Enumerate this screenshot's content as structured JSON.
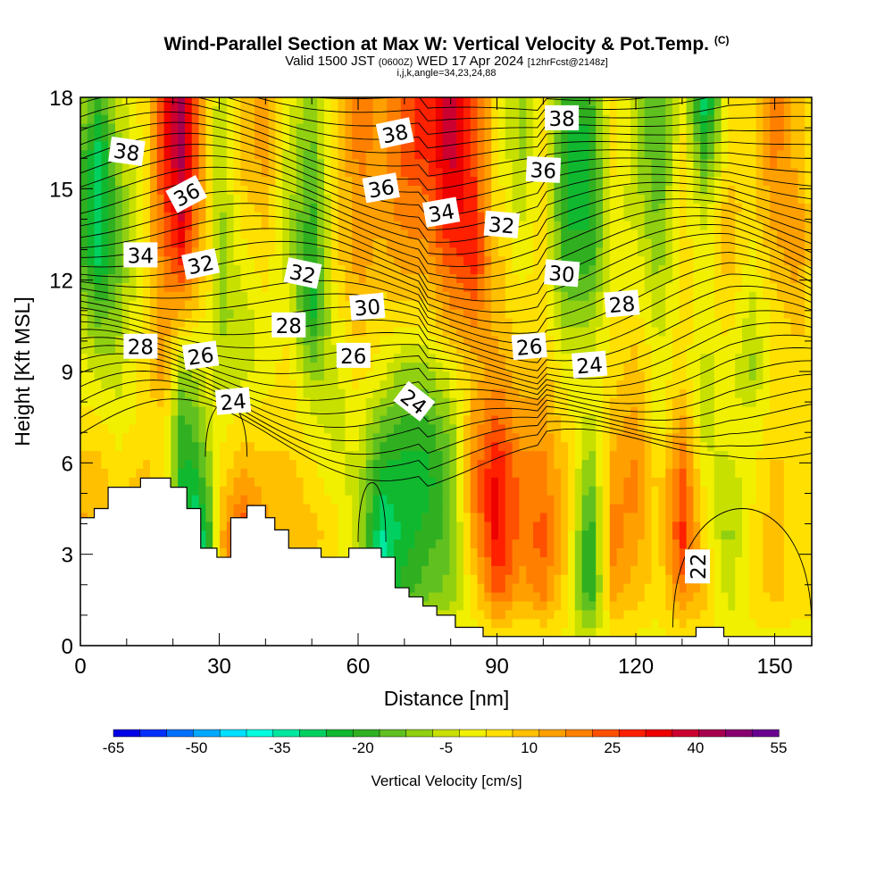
{
  "header": {
    "title": "Wind-Parallel Section at Max W: Vertical Velocity & Pot.Temp.",
    "title_tag": "(C)",
    "valid_prefix": "Valid 1500 JST",
    "valid_utc": "(0600Z)",
    "valid_date": "WED 17 Apr 2024",
    "forecast": "[12hrFcst@2148z]",
    "grid_info": "i,j,k,angle=34,23,24,88"
  },
  "chart_data": {
    "type": "heatmap",
    "xlabel": "Distance [nm]",
    "ylabel": "Height [Kft MSL]",
    "xlim": [
      0,
      158
    ],
    "ylim": [
      0,
      18
    ],
    "x_ticks": [
      0,
      30,
      60,
      90,
      120,
      150
    ],
    "y_ticks": [
      0,
      3,
      6,
      9,
      12,
      15,
      18
    ],
    "grid": false,
    "colorbar": {
      "title": "Vertical Velocity [cm/s]",
      "tick_labels": [
        "-65",
        "-50",
        "-35",
        "-20",
        "-5",
        "10",
        "25",
        "40",
        "55"
      ],
      "levels": [
        -65,
        -60,
        -55,
        -50,
        -45,
        -40,
        -35,
        -30,
        -25,
        -20,
        -15,
        -10,
        -5,
        0,
        5,
        10,
        15,
        20,
        25,
        30,
        35,
        40,
        45,
        50,
        55
      ],
      "colors": [
        "#0000e6",
        "#0030ff",
        "#0070ff",
        "#00a8ff",
        "#00e0ff",
        "#00ffe0",
        "#00e8a0",
        "#00d060",
        "#10b830",
        "#30b020",
        "#60c020",
        "#90d010",
        "#c8e000",
        "#f0f000",
        "#ffe000",
        "#ffc000",
        "#ffa000",
        "#ff8000",
        "#ff5000",
        "#ff2000",
        "#ee0000",
        "#cc0030",
        "#a80050",
        "#880070",
        "#6a0090"
      ]
    },
    "vertical_velocity_columns": [
      {
        "x": 0,
        "w": [
          0,
          5,
          15,
          10,
          5,
          0,
          -5,
          -15,
          -20,
          -15,
          -5
        ]
      },
      {
        "x": 4,
        "w": [
          0,
          5,
          10,
          10,
          5,
          -5,
          -15,
          -30,
          -30,
          -30,
          -20
        ]
      },
      {
        "x": 8,
        "w": [
          0,
          5,
          10,
          5,
          0,
          -5,
          -10,
          -15,
          -15,
          -10,
          -5
        ]
      },
      {
        "x": 14,
        "w": [
          0,
          5,
          10,
          10,
          5,
          5,
          5,
          5,
          5,
          5,
          5
        ]
      },
      {
        "x": 18,
        "w": [
          0,
          0,
          0,
          5,
          5,
          15,
          15,
          20,
          25,
          30,
          30
        ]
      },
      {
        "x": 22,
        "w": [
          0,
          0,
          -20,
          -25,
          -20,
          -10,
          10,
          30,
          40,
          45,
          45
        ]
      },
      {
        "x": 25,
        "w": [
          0,
          -30,
          -35,
          -25,
          -15,
          -5,
          5,
          15,
          20,
          25,
          25
        ]
      },
      {
        "x": 28,
        "w": [
          0,
          -15,
          -20,
          -10,
          -5,
          0,
          0,
          5,
          5,
          5,
          5
        ]
      },
      {
        "x": 30,
        "w": [
          0,
          5,
          10,
          5,
          0,
          -5,
          -10,
          -10,
          -10,
          -10,
          -5
        ]
      },
      {
        "x": 35,
        "w": [
          0,
          35,
          30,
          15,
          5,
          -5,
          -5,
          0,
          5,
          10,
          10
        ]
      },
      {
        "x": 40,
        "w": [
          0,
          10,
          15,
          10,
          5,
          0,
          0,
          5,
          10,
          15,
          15
        ]
      },
      {
        "x": 45,
        "w": [
          0,
          5,
          10,
          10,
          5,
          5,
          0,
          -5,
          -5,
          -5,
          0
        ]
      },
      {
        "x": 50,
        "w": [
          0,
          5,
          10,
          5,
          0,
          -10,
          -25,
          -25,
          -20,
          -15,
          -10
        ]
      },
      {
        "x": 55,
        "w": [
          0,
          0,
          5,
          0,
          -5,
          -5,
          0,
          5,
          5,
          5,
          5
        ]
      },
      {
        "x": 60,
        "w": [
          0,
          -5,
          -5,
          -5,
          0,
          5,
          10,
          15,
          15,
          20,
          20
        ]
      },
      {
        "x": 65,
        "w": [
          0,
          -30,
          -35,
          -25,
          -15,
          0,
          5,
          10,
          15,
          15,
          15
        ]
      },
      {
        "x": 70,
        "w": [
          0,
          -20,
          -25,
          -25,
          -20,
          -10,
          5,
          15,
          20,
          25,
          25
        ]
      },
      {
        "x": 75,
        "w": [
          0,
          -15,
          -20,
          -25,
          -20,
          -10,
          5,
          15,
          20,
          30,
          30
        ]
      },
      {
        "x": 80,
        "w": [
          0,
          -10,
          -15,
          -15,
          -10,
          0,
          15,
          25,
          35,
          40,
          40
        ]
      },
      {
        "x": 85,
        "w": [
          0,
          5,
          15,
          20,
          15,
          10,
          20,
          30,
          30,
          25,
          25
        ]
      },
      {
        "x": 90,
        "w": [
          0,
          25,
          35,
          35,
          25,
          15,
          10,
          10,
          5,
          5,
          5
        ]
      },
      {
        "x": 95,
        "w": [
          0,
          15,
          20,
          20,
          15,
          10,
          5,
          0,
          -5,
          -10,
          -10
        ]
      },
      {
        "x": 100,
        "w": [
          0,
          20,
          25,
          20,
          15,
          10,
          5,
          5,
          5,
          5,
          5
        ]
      },
      {
        "x": 105,
        "w": [
          0,
          5,
          10,
          10,
          5,
          0,
          -10,
          -20,
          -25,
          -25,
          -20
        ]
      },
      {
        "x": 110,
        "w": [
          0,
          -25,
          -25,
          -15,
          -5,
          0,
          -10,
          -20,
          -25,
          -25,
          -20
        ]
      },
      {
        "x": 115,
        "w": [
          0,
          15,
          20,
          15,
          10,
          5,
          5,
          0,
          0,
          5,
          5
        ]
      },
      {
        "x": 120,
        "w": [
          0,
          10,
          15,
          20,
          15,
          10,
          5,
          0,
          -5,
          -5,
          -5
        ]
      },
      {
        "x": 125,
        "w": [
          0,
          5,
          5,
          5,
          0,
          0,
          -5,
          -10,
          -15,
          -20,
          -20
        ]
      },
      {
        "x": 130,
        "w": [
          0,
          20,
          30,
          25,
          15,
          5,
          5,
          5,
          5,
          5,
          0
        ]
      },
      {
        "x": 135,
        "w": [
          0,
          10,
          5,
          0,
          -5,
          -5,
          0,
          0,
          -5,
          -20,
          -35
        ]
      },
      {
        "x": 140,
        "w": [
          0,
          -5,
          -10,
          -5,
          0,
          0,
          5,
          10,
          10,
          5,
          5
        ]
      },
      {
        "x": 145,
        "w": [
          0,
          5,
          5,
          0,
          0,
          -10,
          -5,
          0,
          5,
          5,
          5
        ]
      },
      {
        "x": 150,
        "w": [
          0,
          10,
          10,
          10,
          5,
          5,
          5,
          10,
          15,
          20,
          20
        ]
      },
      {
        "x": 155,
        "w": [
          0,
          5,
          5,
          5,
          5,
          5,
          10,
          15,
          15,
          10,
          10
        ]
      },
      {
        "x": 158,
        "w": [
          0,
          5,
          5,
          5,
          5,
          5,
          5,
          5,
          5,
          5,
          5
        ]
      }
    ],
    "terrain": [
      {
        "x": 0,
        "h": 4.2
      },
      {
        "x": 3,
        "h": 4.5
      },
      {
        "x": 6,
        "h": 5.2
      },
      {
        "x": 13,
        "h": 5.5
      },
      {
        "x": 19.5,
        "h": 5.2
      },
      {
        "x": 23,
        "h": 4.5
      },
      {
        "x": 26,
        "h": 3.2
      },
      {
        "x": 29.5,
        "h": 2.9
      },
      {
        "x": 32.5,
        "h": 4.2
      },
      {
        "x": 36,
        "h": 4.6
      },
      {
        "x": 40,
        "h": 4.2
      },
      {
        "x": 42,
        "h": 3.8
      },
      {
        "x": 45,
        "h": 3.2
      },
      {
        "x": 52,
        "h": 2.9
      },
      {
        "x": 58,
        "h": 3.2
      },
      {
        "x": 65,
        "h": 2.9
      },
      {
        "x": 68,
        "h": 1.9
      },
      {
        "x": 71,
        "h": 1.6
      },
      {
        "x": 74,
        "h": 1.3
      },
      {
        "x": 77,
        "h": 1
      },
      {
        "x": 81,
        "h": 0.6
      },
      {
        "x": 87,
        "h": 0.3
      },
      {
        "x": 133,
        "h": 0.6
      },
      {
        "x": 139,
        "h": 0.3
      },
      {
        "x": 158,
        "h": 0.3
      }
    ],
    "contour_labels": [
      {
        "text": "38",
        "x": 10,
        "y": 16.2,
        "angle": 8
      },
      {
        "text": "38",
        "x": 68,
        "y": 16.8,
        "angle": -12
      },
      {
        "text": "38",
        "x": 104,
        "y": 17.3,
        "angle": 0
      },
      {
        "text": "36",
        "x": 23,
        "y": 14.8,
        "angle": -28
      },
      {
        "text": "36",
        "x": 65,
        "y": 15.0,
        "angle": -10
      },
      {
        "text": "36",
        "x": 100,
        "y": 15.6,
        "angle": 3
      },
      {
        "text": "34",
        "x": 13,
        "y": 12.8,
        "angle": 0
      },
      {
        "text": "34",
        "x": 78,
        "y": 14.2,
        "angle": -10
      },
      {
        "text": "32",
        "x": 26,
        "y": 12.5,
        "angle": -12
      },
      {
        "text": "32",
        "x": 48,
        "y": 12.2,
        "angle": 12
      },
      {
        "text": "32",
        "x": 91,
        "y": 13.8,
        "angle": 5
      },
      {
        "text": "30",
        "x": 62,
        "y": 11.1,
        "angle": -5
      },
      {
        "text": "30",
        "x": 104,
        "y": 12.2,
        "angle": 5
      },
      {
        "text": "28",
        "x": 13,
        "y": 9.8,
        "angle": 0
      },
      {
        "text": "28",
        "x": 45,
        "y": 10.5,
        "angle": 0
      },
      {
        "text": "28",
        "x": 117,
        "y": 11.2,
        "angle": -5
      },
      {
        "text": "26",
        "x": 26,
        "y": 9.5,
        "angle": -8
      },
      {
        "text": "26",
        "x": 59,
        "y": 9.5,
        "angle": 0
      },
      {
        "text": "26",
        "x": 97,
        "y": 9.8,
        "angle": -5
      },
      {
        "text": "24",
        "x": 33,
        "y": 8.0,
        "angle": -5
      },
      {
        "text": "24",
        "x": 72,
        "y": 8.0,
        "angle": 38
      },
      {
        "text": "24",
        "x": 110,
        "y": 9.2,
        "angle": -5
      },
      {
        "text": "22",
        "x": 133.5,
        "y": 2.6,
        "angle": -90
      }
    ]
  }
}
